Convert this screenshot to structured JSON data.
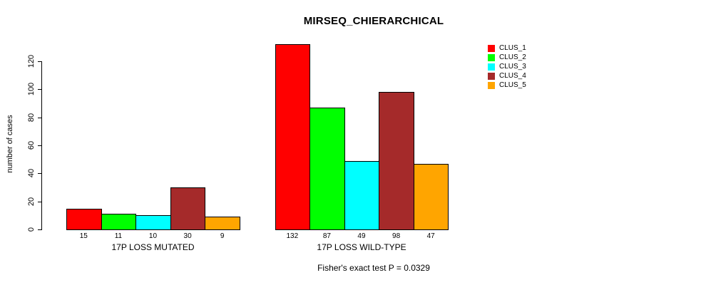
{
  "chart_data": {
    "type": "bar",
    "title": "MIRSEQ_CHIERARCHICAL",
    "ylabel": "number of cases",
    "xlabel": "",
    "annotation": "Fisher's exact test P = 0.0329",
    "ylim": [
      0,
      120
    ],
    "yticks": [
      0,
      20,
      40,
      60,
      80,
      100,
      120
    ],
    "grid": false,
    "legend_position": "top-right",
    "bar_value_labels": true,
    "categories": [
      "17P LOSS MUTATED",
      "17P LOSS WILD-TYPE"
    ],
    "series": [
      {
        "name": "CLUS_1",
        "color": "#FF0000",
        "values": [
          15,
          132
        ]
      },
      {
        "name": "CLUS_2",
        "color": "#00FF00",
        "values": [
          11,
          87
        ]
      },
      {
        "name": "CLUS_3",
        "color": "#00FFFF",
        "values": [
          10,
          49
        ]
      },
      {
        "name": "CLUS_4",
        "color": "#A52A2A",
        "values": [
          30,
          98
        ]
      },
      {
        "name": "CLUS_5",
        "color": "#FFA500",
        "values": [
          9,
          47
        ]
      }
    ]
  }
}
